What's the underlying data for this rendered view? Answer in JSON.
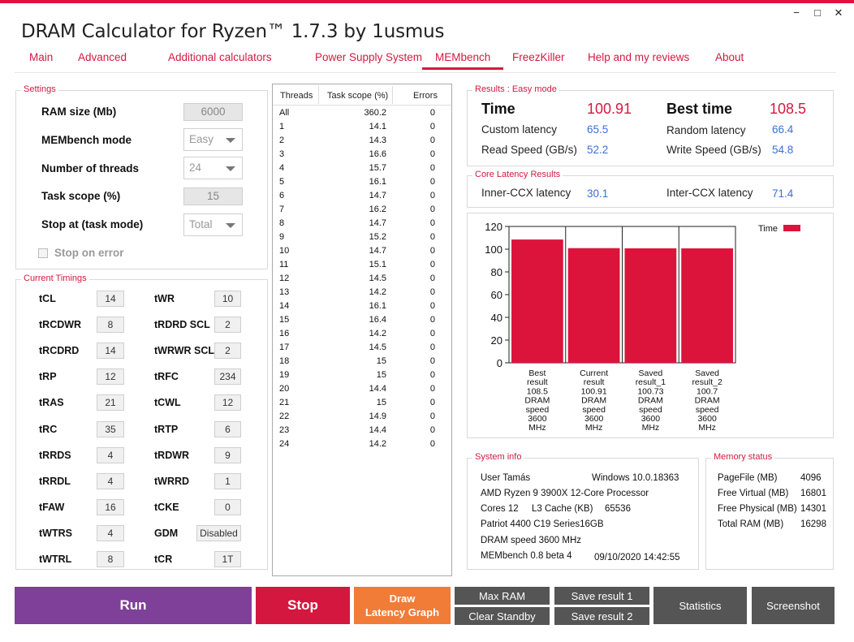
{
  "app": {
    "title": "DRAM Calculator for Ryzen™ 1.7.3 by 1usmus",
    "window_controls": [
      "−",
      "□",
      "✕"
    ]
  },
  "tabs": [
    {
      "label": "Main"
    },
    {
      "label": "Advanced"
    },
    {
      "label": "Additional calculators"
    },
    {
      "label": "Power Supply System"
    },
    {
      "label": "MEMbench"
    },
    {
      "label": "FreezKiller"
    },
    {
      "label": "Help and my reviews"
    },
    {
      "label": "About"
    }
  ],
  "active_tab": "MEMbench",
  "settings": {
    "title": "Settings",
    "ram_size_label": "RAM size (Mb)",
    "ram_size_value": "6000",
    "mode_label": "MEMbench mode",
    "mode_value": "Easy",
    "threads_label": "Number of threads",
    "threads_value": "24",
    "task_scope_label": "Task scope (%)",
    "task_scope_value": "15",
    "stop_at_label": "Stop at (task mode)",
    "stop_at_value": "Total",
    "stop_on_error_label": "Stop on error",
    "stop_on_error_checked": false
  },
  "timings": {
    "title": "Current Timings",
    "left": [
      {
        "label": "tCL",
        "value": "14"
      },
      {
        "label": "tRCDWR",
        "value": "8"
      },
      {
        "label": "tRCDRD",
        "value": "14"
      },
      {
        "label": "tRP",
        "value": "12"
      },
      {
        "label": "tRAS",
        "value": "21"
      },
      {
        "label": "tRC",
        "value": "35"
      },
      {
        "label": "tRRDS",
        "value": "4"
      },
      {
        "label": "tRRDL",
        "value": "4"
      },
      {
        "label": "tFAW",
        "value": "16"
      },
      {
        "label": "tWTRS",
        "value": "4"
      },
      {
        "label": "tWTRL",
        "value": "8"
      }
    ],
    "right": [
      {
        "label": "tWR",
        "value": "10"
      },
      {
        "label": "tRDRD SCL",
        "value": "2"
      },
      {
        "label": "tWRWR SCL",
        "value": "2"
      },
      {
        "label": "tRFC",
        "value": "234"
      },
      {
        "label": "tCWL",
        "value": "12"
      },
      {
        "label": "tRTP",
        "value": "6"
      },
      {
        "label": "tRDWR",
        "value": "9"
      },
      {
        "label": "tWRRD",
        "value": "1"
      },
      {
        "label": "tCKE",
        "value": "0"
      },
      {
        "label": "GDM",
        "value": "Disabled"
      },
      {
        "label": "tCR",
        "value": "1T"
      }
    ]
  },
  "threads_table": {
    "headers": [
      "Threads",
      "Task scope (%)",
      "Errors"
    ],
    "rows": [
      [
        "All",
        "360.2",
        "0"
      ],
      [
        "1",
        "14.1",
        "0"
      ],
      [
        "2",
        "14.3",
        "0"
      ],
      [
        "3",
        "16.6",
        "0"
      ],
      [
        "4",
        "15.7",
        "0"
      ],
      [
        "5",
        "16.1",
        "0"
      ],
      [
        "6",
        "14.7",
        "0"
      ],
      [
        "7",
        "16.2",
        "0"
      ],
      [
        "8",
        "14.7",
        "0"
      ],
      [
        "9",
        "15.2",
        "0"
      ],
      [
        "10",
        "14.7",
        "0"
      ],
      [
        "11",
        "15.1",
        "0"
      ],
      [
        "12",
        "14.5",
        "0"
      ],
      [
        "13",
        "14.2",
        "0"
      ],
      [
        "14",
        "16.1",
        "0"
      ],
      [
        "15",
        "16.4",
        "0"
      ],
      [
        "16",
        "14.2",
        "0"
      ],
      [
        "17",
        "14.5",
        "0"
      ],
      [
        "18",
        "15",
        "0"
      ],
      [
        "19",
        "15",
        "0"
      ],
      [
        "20",
        "14.4",
        "0"
      ],
      [
        "21",
        "15",
        "0"
      ],
      [
        "22",
        "14.9",
        "0"
      ],
      [
        "23",
        "14.4",
        "0"
      ],
      [
        "24",
        "14.2",
        "0"
      ]
    ]
  },
  "results": {
    "title": "Results : Easy mode",
    "time_label": "Time",
    "time_value": "100.91",
    "best_time_label": "Best time",
    "best_time_value": "108.5",
    "custom_latency_label": "Custom latency",
    "custom_latency_value": "65.5",
    "random_latency_label": "Random latency",
    "random_latency_value": "66.4",
    "read_speed_label": "Read Speed (GB/s)",
    "read_speed_value": "52.2",
    "write_speed_label": "Write Speed (GB/s)",
    "write_speed_value": "54.8"
  },
  "core_latency": {
    "title": "Core Latency Results",
    "inner_label": "Inner-CCX latency",
    "inner_value": "30.1",
    "inter_label": "Inter-CCX latency",
    "inter_value": "71.4"
  },
  "chart_data": {
    "type": "bar",
    "categories": [
      [
        "Best",
        "result",
        "108.5",
        "DRAM",
        "speed",
        "3600",
        "MHz"
      ],
      [
        "Current",
        "result",
        "100.91",
        "DRAM",
        "speed",
        "3600",
        "MHz"
      ],
      [
        "Saved",
        "result_1",
        "100.73",
        "DRAM",
        "speed",
        "3600",
        "MHz"
      ],
      [
        "Saved",
        "result_2",
        "100.7",
        "DRAM",
        "speed",
        "3600",
        "MHz"
      ]
    ],
    "series": [
      {
        "name": "Time",
        "values": [
          108.5,
          100.91,
          100.73,
          100.7
        ],
        "color": "#dc143c"
      }
    ],
    "ylim": [
      0,
      120
    ],
    "yticks": [
      "0",
      "20",
      "40",
      "60",
      "80",
      "100",
      "120"
    ],
    "grid": "vertical",
    "legend": "top-right"
  },
  "system_info": {
    "title": "System info",
    "user": "User Tamás",
    "os": "Windows 10.0.18363",
    "cpu": "AMD Ryzen 9 3900X 12-Core Processor",
    "cores": "Cores 12",
    "l3_cache": "L3 Cache (KB)",
    "l3_cache_value": "65536",
    "memory_kit": "Patriot 4400 C19 Series16GB",
    "dram_speed": "DRAM speed 3600 MHz",
    "membench_version": "MEMbench 0.8 beta 4",
    "datetime": "09/10/2020 14:42:55"
  },
  "memory_status": {
    "title": "Memory status",
    "rows": [
      {
        "label": "PageFile (MB)",
        "value": "4096"
      },
      {
        "label": "Free Virtual (MB)",
        "value": "16801"
      },
      {
        "label": "Free Physical (MB)",
        "value": "14301"
      },
      {
        "label": "Total RAM (MB)",
        "value": "16298"
      }
    ]
  },
  "buttons": {
    "run": "Run",
    "stop": "Stop",
    "draw_line1": "Draw",
    "draw_line2": "Latency Graph",
    "max_ram": "Max RAM",
    "clear_standby": "Clear Standby",
    "save_result_1": "Save result 1",
    "save_result_2": "Save result 2",
    "statistics": "Statistics",
    "screenshot": "Screenshot"
  }
}
